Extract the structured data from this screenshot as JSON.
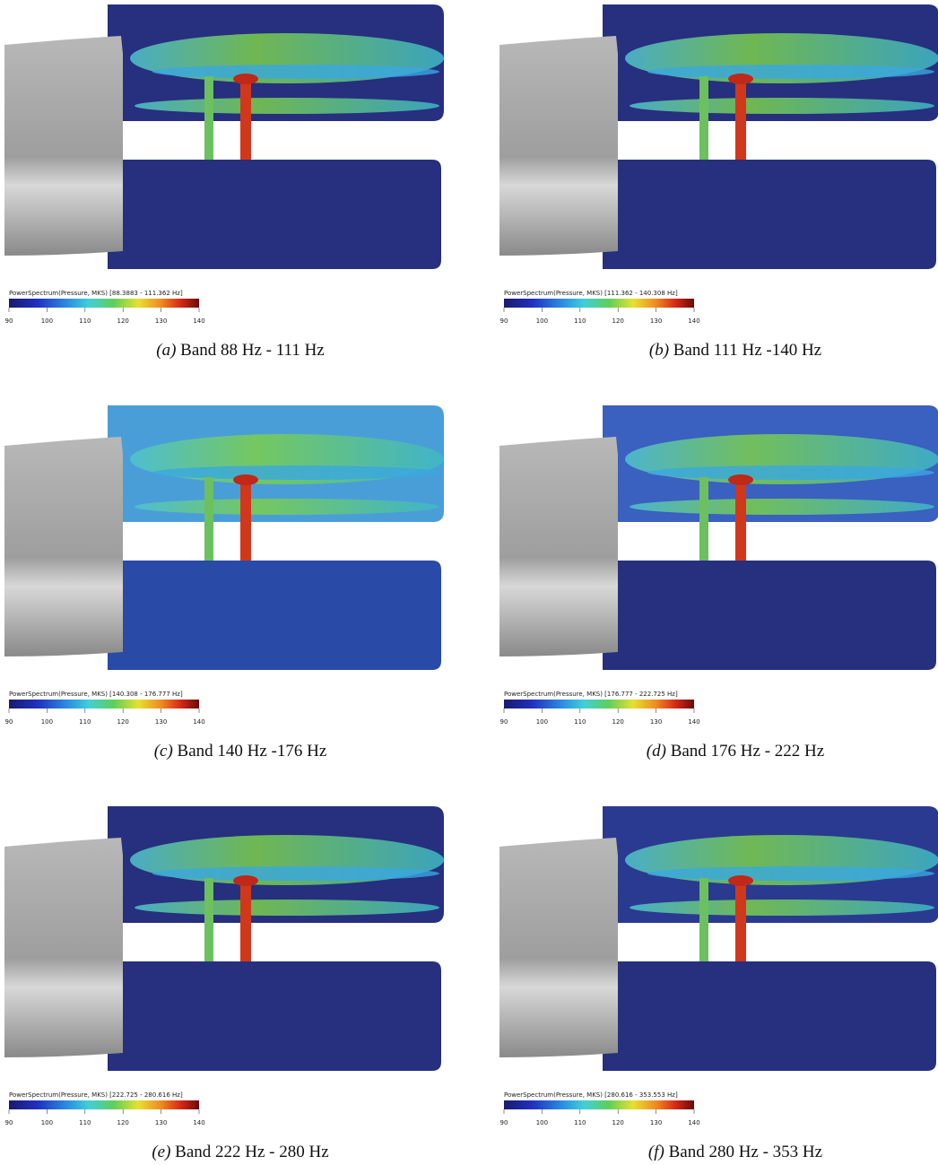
{
  "panels": [
    {
      "label": "(a)",
      "caption": "Band 88 Hz - 111 Hz",
      "colorbar_title": "PowerSpectrum(Pressure, MKS) [88.3883 - 111.362 Hz]"
    },
    {
      "label": "(b)",
      "caption": "Band 111 Hz -140 Hz",
      "colorbar_title": "PowerSpectrum(Pressure, MKS) [111.362 - 140.308 Hz]"
    },
    {
      "label": "(c)",
      "caption": "Band 140 Hz -176 Hz",
      "colorbar_title": "PowerSpectrum(Pressure, MKS) [140.308 - 176.777 Hz]"
    },
    {
      "label": "(d)",
      "caption": "Band 176 Hz - 222 Hz",
      "colorbar_title": "PowerSpectrum(Pressure, MKS) [176.777 - 222.725 Hz]"
    },
    {
      "label": "(e)",
      "caption": "Band 222 Hz - 280 Hz",
      "colorbar_title": "PowerSpectrum(Pressure, MKS) [222.725 - 280.616 Hz]"
    },
    {
      "label": "(f)",
      "caption": "Band 280 Hz - 353 Hz",
      "colorbar_title": "PowerSpectrum(Pressure, MKS) [280.616 - 353.553 Hz]"
    }
  ],
  "colorbar": {
    "ticks": [
      90,
      100,
      110,
      120,
      130,
      140
    ]
  }
}
